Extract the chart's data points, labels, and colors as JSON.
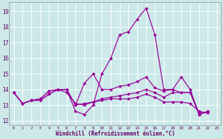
{
  "background_color": "#cce8e8",
  "grid_color": "#aadddd",
  "line_color": "#990099",
  "xlabel": "Windchill (Refroidissement éolien,°C)",
  "ylim": [
    11.7,
    19.6
  ],
  "xlim_min": -0.5,
  "xlim_max": 23.5,
  "yticks": [
    12,
    13,
    14,
    15,
    16,
    17,
    18,
    19
  ],
  "xticks": [
    0,
    1,
    2,
    3,
    4,
    5,
    6,
    7,
    8,
    9,
    10,
    11,
    12,
    13,
    14,
    15,
    16,
    17,
    18,
    19,
    20,
    21,
    22,
    23
  ],
  "series": [
    [
      13.8,
      13.1,
      13.3,
      13.3,
      13.7,
      14.0,
      14.0,
      12.6,
      12.4,
      13.0,
      15.0,
      16.0,
      17.5,
      17.7,
      18.5,
      19.2,
      17.5,
      14.0,
      14.0,
      14.8,
      14.0,
      12.4,
      12.6
    ],
    [
      13.8,
      13.1,
      13.3,
      13.4,
      13.9,
      14.0,
      14.0,
      13.0,
      14.4,
      15.0,
      14.0,
      14.0,
      14.2,
      14.3,
      14.5,
      14.8,
      14.1,
      13.9,
      14.0,
      13.8,
      13.8,
      12.4,
      12.6
    ],
    [
      13.8,
      13.1,
      13.3,
      13.3,
      13.7,
      14.0,
      13.8,
      13.1,
      13.0,
      13.2,
      13.3,
      13.4,
      13.4,
      13.4,
      13.5,
      13.7,
      13.5,
      13.2,
      13.2,
      13.2,
      13.1,
      12.6,
      12.5
    ],
    [
      13.8,
      13.1,
      13.3,
      13.4,
      13.9,
      14.0,
      14.0,
      13.0,
      13.1,
      13.2,
      13.4,
      13.5,
      13.6,
      13.7,
      13.8,
      14.0,
      13.8,
      13.5,
      13.8,
      13.8,
      13.8,
      12.5,
      12.5
    ]
  ],
  "marker_size": 2.5,
  "lw": 0.9
}
